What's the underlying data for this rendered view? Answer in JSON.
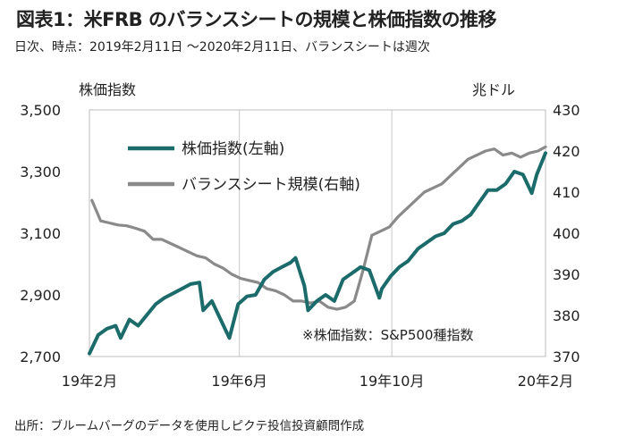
{
  "title": "図表1：米FRB のバランスシートの規模と株価指数の推移",
  "subtitle": "日次、時点：2019年2月11日 〜2020年2月11日、バランスシートは週次",
  "source": "出所：ブルームバーグのデータを使用しピクテ投信投資顧問作成",
  "chart_data": {
    "type": "line",
    "left_unit": "株価指数",
    "right_unit": "兆ドル",
    "x_tick_labels": [
      "19年2月",
      "19年6月",
      "19年10月",
      "20年2月"
    ],
    "x_range": [
      "2019-02-11",
      "2020-02-11"
    ],
    "y_left": {
      "ylim": [
        2700,
        3500
      ],
      "ticks": [
        "2,700",
        "2,900",
        "3,100",
        "3,300",
        "3,500"
      ]
    },
    "y_right": {
      "ylim": [
        370,
        430
      ],
      "ticks": [
        "370",
        "380",
        "390",
        "400",
        "410",
        "420",
        "430"
      ]
    },
    "grid": "vertical at x ticks",
    "legend_position": "top-left",
    "note": "※株価指数：S&P500種指数",
    "series": [
      {
        "name": "株価指数(左軸)",
        "axis": "left",
        "color": "#1c6b6b",
        "x": [
          "2019-02-11",
          "2019-02-18",
          "2019-02-25",
          "2019-03-04",
          "2019-03-08",
          "2019-03-15",
          "2019-03-22",
          "2019-03-29",
          "2019-04-05",
          "2019-04-12",
          "2019-04-19",
          "2019-04-26",
          "2019-05-03",
          "2019-05-10",
          "2019-05-13",
          "2019-05-20",
          "2019-05-27",
          "2019-06-03",
          "2019-06-10",
          "2019-06-17",
          "2019-06-24",
          "2019-07-01",
          "2019-07-08",
          "2019-07-15",
          "2019-07-22",
          "2019-07-26",
          "2019-08-02",
          "2019-08-05",
          "2019-08-12",
          "2019-08-19",
          "2019-08-26",
          "2019-09-02",
          "2019-09-09",
          "2019-09-16",
          "2019-09-23",
          "2019-10-01",
          "2019-10-03",
          "2019-10-10",
          "2019-10-17",
          "2019-10-24",
          "2019-11-01",
          "2019-11-08",
          "2019-11-15",
          "2019-11-22",
          "2019-11-29",
          "2019-12-06",
          "2019-12-13",
          "2019-12-20",
          "2019-12-27",
          "2020-01-03",
          "2020-01-10",
          "2020-01-17",
          "2020-01-24",
          "2020-01-31",
          "2020-02-04",
          "2020-02-11"
        ],
        "values": [
          2710,
          2770,
          2790,
          2800,
          2760,
          2820,
          2800,
          2835,
          2870,
          2890,
          2905,
          2920,
          2935,
          2940,
          2850,
          2880,
          2820,
          2760,
          2870,
          2895,
          2900,
          2950,
          2975,
          2990,
          3005,
          3020,
          2930,
          2850,
          2880,
          2900,
          2880,
          2950,
          2970,
          2990,
          2980,
          2890,
          2920,
          2960,
          2990,
          3010,
          3050,
          3070,
          3090,
          3100,
          3130,
          3140,
          3160,
          3200,
          3240,
          3240,
          3260,
          3300,
          3290,
          3230,
          3290,
          3360
        ]
      },
      {
        "name": "バランスシート規模(右軸)",
        "axis": "right",
        "color": "#8a8a8a",
        "x": [
          "2019-02-13",
          "2019-02-20",
          "2019-02-27",
          "2019-03-06",
          "2019-03-13",
          "2019-03-20",
          "2019-03-27",
          "2019-04-03",
          "2019-04-10",
          "2019-04-17",
          "2019-04-24",
          "2019-05-01",
          "2019-05-08",
          "2019-05-15",
          "2019-05-22",
          "2019-05-29",
          "2019-06-05",
          "2019-06-12",
          "2019-06-19",
          "2019-06-26",
          "2019-07-03",
          "2019-07-10",
          "2019-07-17",
          "2019-07-24",
          "2019-07-31",
          "2019-08-07",
          "2019-08-14",
          "2019-08-21",
          "2019-08-28",
          "2019-09-04",
          "2019-09-11",
          "2019-09-18",
          "2019-09-25",
          "2019-10-02",
          "2019-10-09",
          "2019-10-16",
          "2019-10-23",
          "2019-10-30",
          "2019-11-06",
          "2019-11-13",
          "2019-11-20",
          "2019-11-27",
          "2019-12-04",
          "2019-12-11",
          "2019-12-18",
          "2019-12-25",
          "2020-01-01",
          "2020-01-08",
          "2020-01-15",
          "2020-01-22",
          "2020-01-29",
          "2020-02-05",
          "2020-02-11"
        ],
        "values": [
          408,
          403,
          402.5,
          402,
          401.8,
          401.2,
          400.5,
          398.5,
          398.5,
          397.5,
          396.5,
          395.5,
          394.5,
          394,
          392.5,
          391.5,
          390,
          389,
          388.5,
          388,
          386.5,
          386,
          385,
          383.5,
          383.5,
          383,
          383.5,
          382,
          381.5,
          382,
          383.5,
          391,
          399.5,
          400.5,
          401.5,
          404,
          406,
          408,
          410,
          411,
          412,
          414,
          416,
          418,
          419,
          420,
          420.5,
          419,
          419.5,
          418.5,
          419.5,
          420,
          421
        ]
      }
    ]
  }
}
